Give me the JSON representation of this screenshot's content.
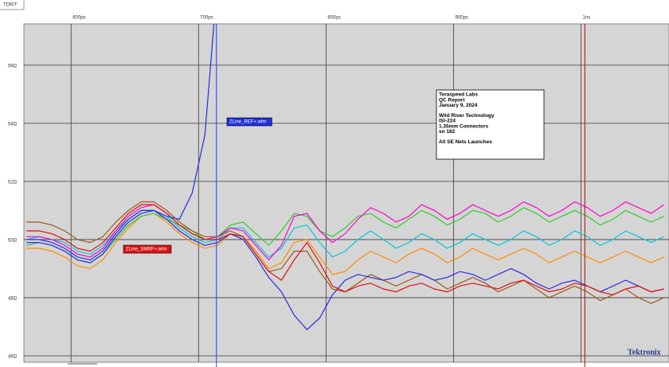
{
  "chart_data": {
    "type": "line",
    "y_label": "TDR/T",
    "brand": "Tektronix",
    "xlim": [
      563,
      1069
    ],
    "ylim": [
      45.78,
      57.42
    ],
    "xticks": [
      {
        "value": 600,
        "label": "600ps"
      },
      {
        "value": 700,
        "label": "700ps"
      },
      {
        "value": 800,
        "label": "800ps"
      },
      {
        "value": 900,
        "label": "900ps"
      },
      {
        "value": 1000,
        "label": "1ns"
      }
    ],
    "yticks": [
      {
        "value": 46,
        "label": "46Ω"
      },
      {
        "value": 48,
        "label": "48Ω"
      },
      {
        "value": 50,
        "label": "50Ω"
      },
      {
        "value": 52,
        "label": "52Ω"
      },
      {
        "value": 54,
        "label": "54Ω"
      },
      {
        "value": 56,
        "label": "56Ω"
      }
    ],
    "grid": true,
    "cursors": [
      {
        "x": 714,
        "color": "#1f3fff"
      },
      {
        "x": 1003,
        "color": "#c00000"
      }
    ],
    "annotation": [
      [
        "Teraspeed Labs",
        "QC Report",
        "January 9, 2024"
      ],
      [
        "Wild River Technology",
        "ISI-224",
        "1.35mm Connectors",
        "sn 182"
      ],
      [
        "All SE Nets Launches"
      ]
    ],
    "x": [
      565,
      575,
      585,
      595,
      605,
      615,
      625,
      635,
      645,
      655,
      665,
      675,
      685,
      695,
      705,
      715,
      725,
      735,
      745,
      755,
      765,
      775,
      785,
      795,
      805,
      815,
      825,
      835,
      845,
      855,
      865,
      875,
      885,
      895,
      905,
      915,
      925,
      935,
      945,
      955,
      965,
      975,
      985,
      995,
      1005,
      1015,
      1025,
      1035,
      1045,
      1055,
      1065
    ],
    "series": [
      {
        "color": "#ff8c00",
        "values": [
          49.7,
          49.7,
          49.6,
          49.4,
          49.1,
          49.0,
          49.3,
          49.9,
          50.4,
          50.8,
          50.9,
          50.6,
          50.2,
          49.9,
          49.7,
          49.8,
          50.2,
          50.1,
          49.6,
          49.0,
          49.2,
          49.9,
          50.0,
          49.4,
          48.8,
          48.9,
          49.3,
          49.6,
          49.4,
          49.2,
          49.5,
          49.7,
          49.5,
          49.2,
          49.4,
          49.7,
          49.5,
          49.3,
          49.5,
          49.7,
          49.5,
          49.2,
          49.4,
          49.6,
          49.4,
          49.2,
          49.4,
          49.6,
          49.4,
          49.2,
          49.4
        ]
      },
      {
        "color": "#00c8d8",
        "values": [
          50.0,
          50.1,
          50.0,
          49.9,
          49.6,
          49.5,
          49.8,
          50.3,
          50.7,
          51.0,
          51.0,
          50.8,
          50.4,
          50.1,
          49.9,
          50.0,
          50.4,
          50.4,
          49.9,
          49.4,
          49.7,
          50.4,
          50.5,
          49.9,
          49.4,
          49.6,
          50.0,
          50.3,
          50.0,
          49.7,
          49.9,
          50.2,
          50.0,
          49.7,
          49.9,
          50.2,
          50.0,
          49.8,
          50.0,
          50.3,
          50.1,
          49.8,
          50.0,
          50.3,
          50.1,
          49.8,
          50.0,
          50.3,
          50.1,
          49.9,
          50.1
        ]
      },
      {
        "color": "#2ecc2e",
        "values": [
          49.8,
          49.9,
          49.8,
          49.6,
          49.3,
          49.2,
          49.5,
          50.0,
          50.5,
          50.8,
          50.9,
          50.7,
          50.5,
          50.3,
          50.0,
          50.1,
          50.5,
          50.6,
          50.2,
          49.8,
          50.3,
          50.9,
          50.8,
          50.3,
          50.1,
          50.4,
          50.8,
          50.9,
          50.6,
          50.4,
          50.7,
          51.0,
          50.8,
          50.5,
          50.7,
          51.0,
          50.9,
          50.6,
          50.8,
          51.1,
          50.9,
          50.6,
          50.8,
          51.0,
          50.8,
          50.5,
          50.7,
          51.0,
          50.8,
          50.6,
          50.8
        ]
      },
      {
        "color": "#ff00cc",
        "values": [
          50.1,
          50.1,
          50.0,
          49.8,
          49.5,
          49.4,
          49.7,
          50.3,
          50.8,
          51.1,
          51.2,
          50.9,
          50.5,
          50.2,
          50.0,
          50.1,
          50.4,
          50.3,
          49.8,
          49.3,
          49.8,
          50.8,
          50.9,
          50.3,
          49.9,
          50.2,
          50.7,
          51.1,
          50.9,
          50.6,
          50.8,
          51.2,
          51.0,
          50.7,
          50.9,
          51.2,
          51.0,
          50.8,
          51.0,
          51.3,
          51.1,
          50.8,
          51.0,
          51.3,
          51.1,
          50.8,
          51.0,
          51.3,
          51.1,
          50.9,
          51.2
        ]
      },
      {
        "color": "#9b5a1a",
        "values": [
          50.6,
          50.6,
          50.5,
          50.3,
          50.0,
          49.9,
          50.1,
          50.6,
          51.0,
          51.3,
          51.3,
          51.0,
          50.6,
          50.3,
          50.1,
          50.1,
          50.3,
          50.1,
          49.5,
          48.9,
          49.0,
          49.6,
          49.6,
          48.9,
          48.3,
          48.2,
          48.5,
          48.8,
          48.6,
          48.4,
          48.6,
          48.8,
          48.6,
          48.3,
          48.5,
          48.7,
          48.5,
          48.2,
          48.4,
          48.6,
          48.3,
          48.0,
          48.2,
          48.4,
          48.2,
          47.9,
          48.1,
          48.3,
          48.0,
          47.8,
          48.0
        ]
      },
      {
        "color": "#2a2ae0",
        "values": [
          49.9,
          49.9,
          49.8,
          49.6,
          49.3,
          49.2,
          49.5,
          50.1,
          50.6,
          50.9,
          51.0,
          50.7,
          50.3,
          50.0,
          49.8,
          49.9,
          50.2,
          50.0,
          49.4,
          48.7,
          48.2,
          47.4,
          46.9,
          47.3,
          48.1,
          48.6,
          48.8,
          48.7,
          48.6,
          48.7,
          48.9,
          48.8,
          48.6,
          48.7,
          48.9,
          48.8,
          48.6,
          48.8,
          49.0,
          48.8,
          48.5,
          48.3,
          48.5,
          48.6,
          48.4,
          48.2,
          48.4,
          48.6,
          48.4,
          48.2,
          48.3
        ]
      },
      {
        "name": "ZLine_SMRF+.wfm",
        "color": "#e01010",
        "values": [
          50.3,
          50.3,
          50.2,
          50.0,
          49.7,
          49.6,
          49.9,
          50.4,
          50.9,
          51.2,
          51.2,
          50.9,
          50.5,
          50.2,
          50.0,
          50.0,
          50.2,
          50.1,
          49.5,
          48.9,
          48.6,
          49.3,
          49.9,
          49.2,
          48.4,
          48.2,
          48.4,
          48.5,
          48.3,
          48.2,
          48.4,
          48.5,
          48.3,
          48.2,
          48.4,
          48.5,
          48.4,
          48.3,
          48.5,
          48.6,
          48.4,
          48.2,
          48.3,
          48.5,
          48.4,
          48.2,
          48.1,
          48.3,
          48.4,
          48.2,
          48.3
        ]
      },
      {
        "name": "ZLine_REF+.wfm",
        "color": "#1f2fe0",
        "values": [
          50.0,
          50.0,
          49.9,
          49.7,
          49.4,
          49.3,
          49.6,
          50.2,
          50.7,
          51.0,
          51.0,
          50.8,
          50.7,
          51.6,
          53.6,
          59.0,
          null,
          null,
          null,
          null,
          null,
          null,
          null,
          null,
          null,
          null,
          null,
          null,
          null,
          null,
          null,
          null,
          null,
          null,
          null,
          null,
          null,
          null,
          null,
          null,
          null,
          null,
          null,
          null,
          null,
          null,
          null,
          null,
          null,
          null,
          null
        ]
      }
    ]
  }
}
